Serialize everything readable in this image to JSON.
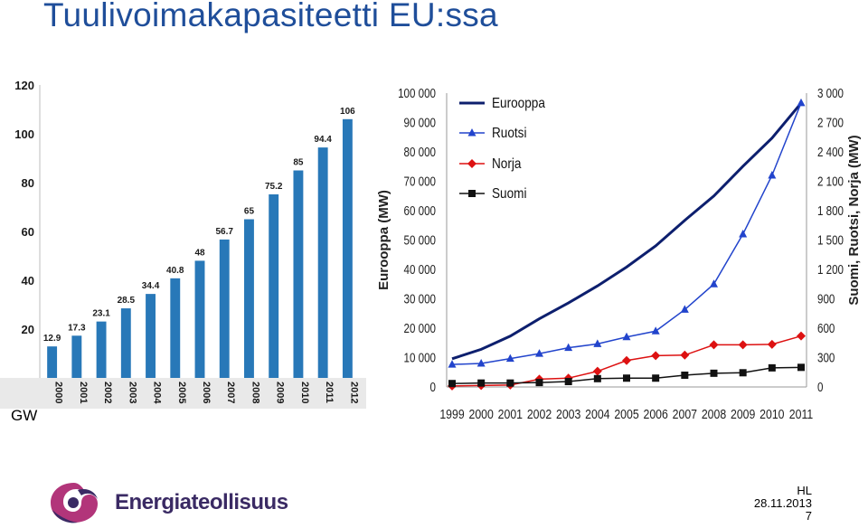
{
  "slide": {
    "title": "Tuulivoimakapasiteetti EU:ssa",
    "unit_label": "GW",
    "company": "Energiateollisuus",
    "author": "HL",
    "date": "28.11.2013",
    "page": "7"
  },
  "chart_data": [
    {
      "type": "bar",
      "title": "",
      "ylabel": "",
      "xlabel": "",
      "ylim": [
        0,
        120
      ],
      "yticks": [
        20,
        40,
        60,
        80,
        100,
        120
      ],
      "grid": false,
      "color": "#2878b8",
      "categories": [
        "2000",
        "2001",
        "2002",
        "2003",
        "2004",
        "2005",
        "2006",
        "2007",
        "2008",
        "2009",
        "2010",
        "2011",
        "2012"
      ],
      "values": [
        12.9,
        17.3,
        23.1,
        28.5,
        34.4,
        40.8,
        48,
        56.7,
        65,
        75.2,
        85,
        94.4,
        106
      ],
      "value_labels": [
        "12.9",
        "17.3",
        "23.1",
        "28.5",
        "34.4",
        "40.8",
        "48",
        "56.7",
        "65",
        "75.2",
        "85",
        "94.4",
        "106"
      ]
    },
    {
      "type": "line",
      "title": "",
      "xlabel": "",
      "ylabel_left": "Eurooppa (MW)",
      "ylabel_right": "Suomi, Ruotsi, Norja (MW)",
      "x": [
        "1999",
        "2000",
        "2001",
        "2002",
        "2003",
        "2004",
        "2005",
        "2006",
        "2007",
        "2008",
        "2009",
        "2010",
        "2011"
      ],
      "ylim_left": [
        0,
        100000
      ],
      "ylim_right": [
        0,
        3000
      ],
      "yticks_left": [
        "0",
        "10 000",
        "20 000",
        "30 000",
        "40 000",
        "50 000",
        "60 000",
        "70 000",
        "80 000",
        "90 000",
        "100 000"
      ],
      "yticks_right": [
        "0",
        "300",
        "600",
        "900",
        "1 200",
        "1 500",
        "1 800",
        "2 100",
        "2 400",
        "2 700",
        "3 000"
      ],
      "legend_position": "top-left",
      "series": [
        {
          "name": "Eurooppa",
          "axis": "left",
          "color": "#0d1f6e",
          "marker": "none",
          "values": [
            9600,
            12800,
            17300,
            23200,
            28600,
            34400,
            40800,
            48000,
            56700,
            65000,
            75100,
            84700,
            96600
          ]
        },
        {
          "name": "Ruotsi",
          "axis": "right",
          "color": "#2244cc",
          "marker": "triangle",
          "values": [
            230,
            240,
            290,
            340,
            400,
            440,
            510,
            570,
            790,
            1050,
            1560,
            2160,
            2900
          ]
        },
        {
          "name": "Norja",
          "axis": "right",
          "color": "#dd1111",
          "marker": "diamond",
          "values": [
            10,
            15,
            20,
            80,
            90,
            160,
            270,
            320,
            325,
            430,
            430,
            435,
            520
          ]
        },
        {
          "name": "Suomi",
          "axis": "right",
          "color": "#111111",
          "marker": "square",
          "values": [
            35,
            40,
            40,
            45,
            55,
            85,
            90,
            90,
            120,
            140,
            145,
            195,
            200
          ]
        }
      ]
    }
  ]
}
